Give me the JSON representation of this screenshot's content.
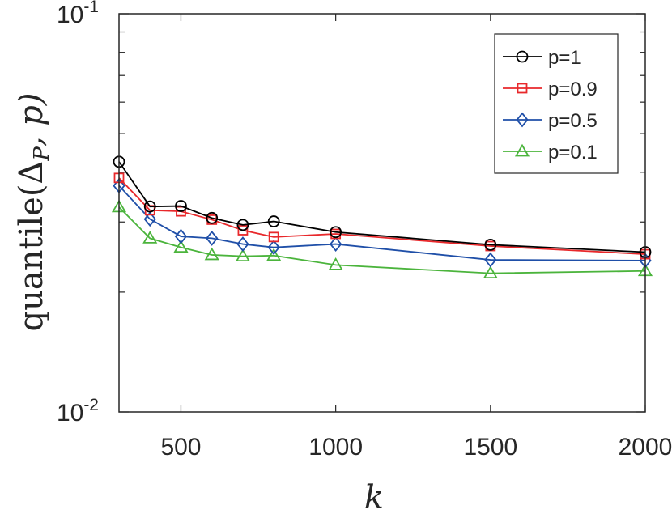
{
  "chart_data": {
    "type": "line",
    "title": "",
    "xlabel": "k",
    "ylabel": "quantile(Δ_P, p)",
    "ylabel_parts": {
      "fn": "quantile(",
      "delta": "Δ",
      "sub": "P",
      "rest": ", p)"
    },
    "xlim": [
      300,
      2000
    ],
    "ylim": [
      0.01,
      0.1
    ],
    "yscale": "log",
    "xticks": [
      500,
      1000,
      1500,
      2000
    ],
    "xtick_labels": [
      "500",
      "1000",
      "1500",
      "2000"
    ],
    "yticks": [
      {
        "base": "10",
        "exp": "-2",
        "value": 0.01
      },
      {
        "base": "10",
        "exp": "-1",
        "value": 0.1
      }
    ],
    "grid": false,
    "legend_position": "top-right",
    "x": [
      300,
      400,
      500,
      600,
      700,
      800,
      1000,
      1500,
      2000
    ],
    "series": [
      {
        "name": "p=1",
        "color": "#000000",
        "marker": "circle",
        "values": [
          0.0425,
          0.0328,
          0.0329,
          0.0307,
          0.0295,
          0.0301,
          0.0283,
          0.0263,
          0.0252
        ]
      },
      {
        "name": "p=0.9",
        "color": "#e8282b",
        "marker": "square",
        "values": [
          0.0387,
          0.0321,
          0.0319,
          0.0304,
          0.0286,
          0.0275,
          0.028,
          0.0261,
          0.0249
        ]
      },
      {
        "name": "p=0.5",
        "color": "#1f4fa8",
        "marker": "diamond",
        "values": [
          0.037,
          0.0305,
          0.0276,
          0.0273,
          0.0264,
          0.0259,
          0.0264,
          0.0241,
          0.024
        ]
      },
      {
        "name": "p=0.1",
        "color": "#4bb43c",
        "marker": "triangle",
        "values": [
          0.0327,
          0.0273,
          0.0259,
          0.0248,
          0.0246,
          0.0247,
          0.0234,
          0.0223,
          0.0226
        ]
      }
    ]
  }
}
